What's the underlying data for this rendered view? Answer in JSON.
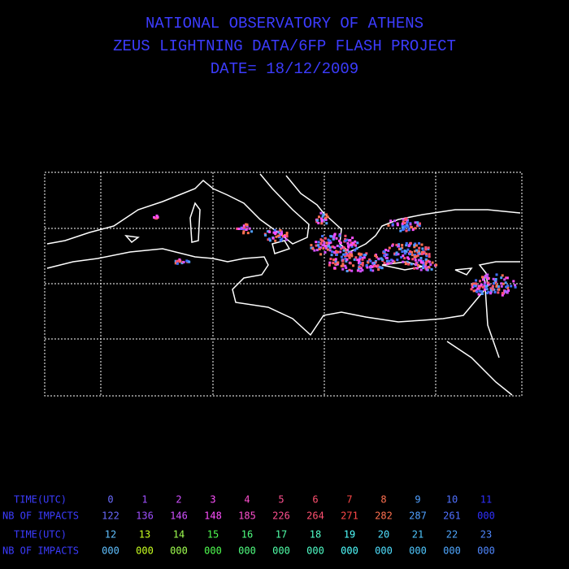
{
  "header": {
    "lines": [
      "NATIONAL OBSERVATORY OF ATHENS",
      "ZEUS LIGHTNING DATA/6FP FLASH PROJECT",
      "DATE= 18/12/2009"
    ]
  },
  "table": {
    "label_color": "#3c3cff",
    "rows": [
      {
        "label": "TIME(UTC)",
        "cells": [
          {
            "text": "0",
            "color": "#6a6aff"
          },
          {
            "text": "1",
            "color": "#a050ff"
          },
          {
            "text": "2",
            "color": "#d050ff"
          },
          {
            "text": "3",
            "color": "#ff50ff"
          },
          {
            "text": "4",
            "color": "#ff50d0"
          },
          {
            "text": "5",
            "color": "#ff5090"
          },
          {
            "text": "6",
            "color": "#ff5070"
          },
          {
            "text": "7",
            "color": "#ff4848"
          },
          {
            "text": "8",
            "color": "#ff7050"
          },
          {
            "text": "9",
            "color": "#50a0ff"
          },
          {
            "text": "10",
            "color": "#5070ff"
          },
          {
            "text": "11",
            "color": "#3030ff"
          }
        ]
      },
      {
        "label": "NB OF IMPACTS",
        "cells": [
          {
            "text": "122",
            "color": "#6a6aff"
          },
          {
            "text": "136",
            "color": "#a050ff"
          },
          {
            "text": "146",
            "color": "#d050ff"
          },
          {
            "text": "148",
            "color": "#ff50ff"
          },
          {
            "text": "185",
            "color": "#ff50d0"
          },
          {
            "text": "226",
            "color": "#ff5090"
          },
          {
            "text": "264",
            "color": "#ff5070"
          },
          {
            "text": "271",
            "color": "#ff4848"
          },
          {
            "text": "282",
            "color": "#ff7050"
          },
          {
            "text": "287",
            "color": "#50a0ff"
          },
          {
            "text": "261",
            "color": "#5070ff"
          },
          {
            "text": "000",
            "color": "#3030ff"
          }
        ]
      },
      {
        "label": "TIME(UTC)",
        "cells": [
          {
            "text": "12",
            "color": "#60c0ff"
          },
          {
            "text": "13",
            "color": "#c8ff20"
          },
          {
            "text": "14",
            "color": "#a0ff50"
          },
          {
            "text": "15",
            "color": "#50ff50"
          },
          {
            "text": "16",
            "color": "#50ff80"
          },
          {
            "text": "17",
            "color": "#50ffa8"
          },
          {
            "text": "18",
            "color": "#50ffc8"
          },
          {
            "text": "19",
            "color": "#50ffff"
          },
          {
            "text": "20",
            "color": "#50e0ff"
          },
          {
            "text": "21",
            "color": "#50c8ff"
          },
          {
            "text": "22",
            "color": "#50a8ff"
          },
          {
            "text": "23",
            "color": "#5088ff"
          }
        ]
      },
      {
        "label": "NB OF IMPACTS",
        "cells": [
          {
            "text": "000",
            "color": "#60c0ff"
          },
          {
            "text": "000",
            "color": "#c8ff20"
          },
          {
            "text": "000",
            "color": "#a0ff50"
          },
          {
            "text": "000",
            "color": "#50ff50"
          },
          {
            "text": "000",
            "color": "#50ff80"
          },
          {
            "text": "000",
            "color": "#50ffa8"
          },
          {
            "text": "000",
            "color": "#50ffc8"
          },
          {
            "text": "000",
            "color": "#50ffff"
          },
          {
            "text": "000",
            "color": "#50e0ff"
          },
          {
            "text": "000",
            "color": "#50c8ff"
          },
          {
            "text": "000",
            "color": "#50a8ff"
          },
          {
            "text": "000",
            "color": "#5088ff"
          }
        ]
      }
    ]
  }
}
